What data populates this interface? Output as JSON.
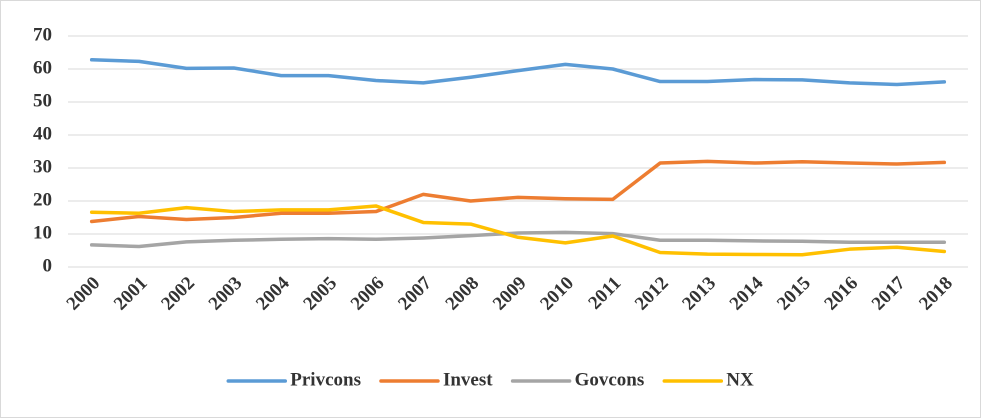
{
  "chart_data": {
    "type": "line",
    "categories": [
      "2000",
      "2001",
      "2002",
      "2003",
      "2004",
      "2005",
      "2006",
      "2007",
      "2008",
      "2009",
      "2010",
      "2011",
      "2012",
      "2013",
      "2014",
      "2015",
      "2016",
      "2017",
      "2018"
    ],
    "series": [
      {
        "name": "Privcons",
        "color": "#5b9bd5",
        "values": [
          62.8,
          62.3,
          60.2,
          60.3,
          58,
          58,
          56.5,
          55.8,
          57.5,
          59.5,
          61.4,
          60,
          56.2,
          56.2,
          56.8,
          56.7,
          55.8,
          55.3,
          56.1
        ]
      },
      {
        "name": "Invest",
        "color": "#ed7d31",
        "values": [
          13.8,
          15.3,
          14.4,
          15,
          16.3,
          16.3,
          16.8,
          22,
          20,
          21.1,
          20.7,
          20.5,
          31.5,
          32,
          31.5,
          31.9,
          31.5,
          31.2,
          31.7
        ]
      },
      {
        "name": "Govcons",
        "color": "#a5a5a5",
        "values": [
          6.7,
          6.2,
          7.6,
          8.1,
          8.4,
          8.6,
          8.4,
          8.8,
          9.5,
          10.3,
          10.5,
          10.1,
          8.1,
          8.1,
          7.9,
          7.8,
          7.5,
          7.5,
          7.5
        ]
      },
      {
        "name": "NX",
        "color": "#ffc000",
        "values": [
          16.6,
          16.3,
          18,
          16.8,
          17.3,
          17.3,
          18.5,
          13.5,
          13,
          9,
          7.3,
          9.4,
          4.4,
          3.9,
          3.8,
          3.7,
          5.4,
          6,
          4.7
        ]
      }
    ],
    "ylim": [
      0,
      70
    ],
    "yticks": [
      0,
      10,
      20,
      30,
      40,
      50,
      60,
      70
    ],
    "grid": true,
    "legend": "bottom"
  }
}
